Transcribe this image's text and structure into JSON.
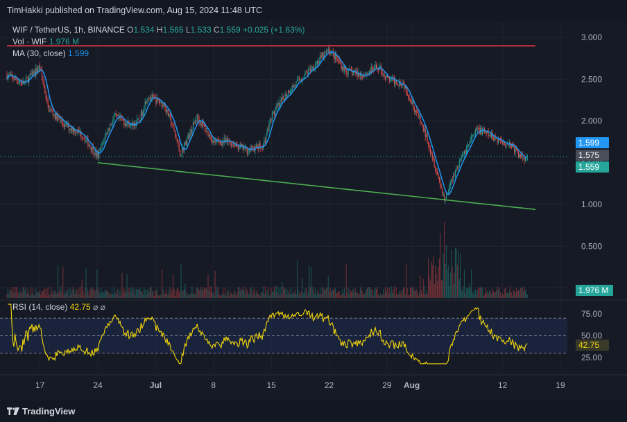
{
  "header": {
    "published": "TimHakki published on TradingView.com, Aug 15, 2024 11:48 UTC"
  },
  "legend": {
    "symbol": "WIF / TetherUS, 1h, BINANCE",
    "o_label": "O",
    "o": "1.534",
    "h_label": "H",
    "h": "1.565",
    "l_label": "L",
    "l": "1.533",
    "c_label": "C",
    "c": "1.559",
    "change": "+0.025 (+1.63%)",
    "vol_label": "Vol · WIF",
    "vol": "1.976 M",
    "ma_label": "MA (30, close)",
    "ma": "1.599",
    "rsi_label": "RSI (14, close)",
    "rsi": "42.75",
    "rsi_extra": "⌀ ⌀"
  },
  "badges": {
    "ma": "1.599",
    "last": "1.575",
    "close": "1.559",
    "vol": "1.976 M",
    "rsi": "42.75"
  },
  "footer": {
    "brand": "TradingView"
  },
  "colors": {
    "bg": "#161a25",
    "up": "#26a69a",
    "down": "#ef5350",
    "ma": "#2196f3",
    "resistance": "#f23645",
    "support": "#4caf50",
    "rsi": "#f5d90a",
    "rsi_band": "#1e2a4d"
  },
  "chart_data": [
    {
      "type": "candlestick",
      "x_ticks": [
        "17",
        "24",
        "Jul",
        "8",
        "15",
        "22",
        "29",
        "Aug",
        "12",
        "19"
      ],
      "y_ticks": [
        3.0,
        2.5,
        2.0,
        1.5,
        1.0,
        0.5,
        0.0
      ],
      "ylim": [
        -0.12,
        3.2
      ],
      "price_path": [
        {
          "t": "Jun 13",
          "p": 2.55
        },
        {
          "t": "Jun 15",
          "p": 2.45
        },
        {
          "t": "Jun 17",
          "p": 2.65
        },
        {
          "t": "Jun 18",
          "p": 2.15
        },
        {
          "t": "Jun 20",
          "p": 1.95
        },
        {
          "t": "Jun 22",
          "p": 1.85
        },
        {
          "t": "Jun 24",
          "p": 1.57
        },
        {
          "t": "Jun 25",
          "p": 1.85
        },
        {
          "t": "Jun 26",
          "p": 2.05
        },
        {
          "t": "Jun 28",
          "p": 1.95
        },
        {
          "t": "Jun 29",
          "p": 2.0
        },
        {
          "t": "Jun 30",
          "p": 2.3
        },
        {
          "t": "Jul 2",
          "p": 2.2
        },
        {
          "t": "Jul 3",
          "p": 1.95
        },
        {
          "t": "Jul 4",
          "p": 1.6
        },
        {
          "t": "Jul 6",
          "p": 2.05
        },
        {
          "t": "Jul 8",
          "p": 1.75
        },
        {
          "t": "Jul 10",
          "p": 1.75
        },
        {
          "t": "Jul 12",
          "p": 1.65
        },
        {
          "t": "Jul 14",
          "p": 1.7
        },
        {
          "t": "Jul 15",
          "p": 2.05
        },
        {
          "t": "Jul 17",
          "p": 2.35
        },
        {
          "t": "Jul 19",
          "p": 2.55
        },
        {
          "t": "Jul 21",
          "p": 2.75
        },
        {
          "t": "Jul 22",
          "p": 2.85
        },
        {
          "t": "Jul 24",
          "p": 2.6
        },
        {
          "t": "Jul 26",
          "p": 2.55
        },
        {
          "t": "Jul 28",
          "p": 2.65
        },
        {
          "t": "Jul 29",
          "p": 2.5
        },
        {
          "t": "Jul 31",
          "p": 2.45
        },
        {
          "t": "Aug 2",
          "p": 2.0
        },
        {
          "t": "Aug 3",
          "p": 1.75
        },
        {
          "t": "Aug 5",
          "p": 1.05
        },
        {
          "t": "Aug 6",
          "p": 1.35
        },
        {
          "t": "Aug 8",
          "p": 1.75
        },
        {
          "t": "Aug 9",
          "p": 1.9
        },
        {
          "t": "Aug 11",
          "p": 1.8
        },
        {
          "t": "Aug 12",
          "p": 1.75
        },
        {
          "t": "Aug 13",
          "p": 1.72
        },
        {
          "t": "Aug 14",
          "p": 1.58
        },
        {
          "t": "Aug 15",
          "p": 1.559
        }
      ],
      "resistance": {
        "from": "Jun 13",
        "to": "Aug 16",
        "price": 2.9
      },
      "support": {
        "from": {
          "t": "Jun 24",
          "p": 1.5
        },
        "to": {
          "t": "Aug 16",
          "p": 0.94
        }
      },
      "ma_period": 30
    },
    {
      "type": "area",
      "name": "RSI",
      "y_ticks": [
        75.0,
        50.0,
        25.0
      ],
      "ylim": [
        10,
        90
      ],
      "band": [
        30,
        70
      ]
    }
  ]
}
